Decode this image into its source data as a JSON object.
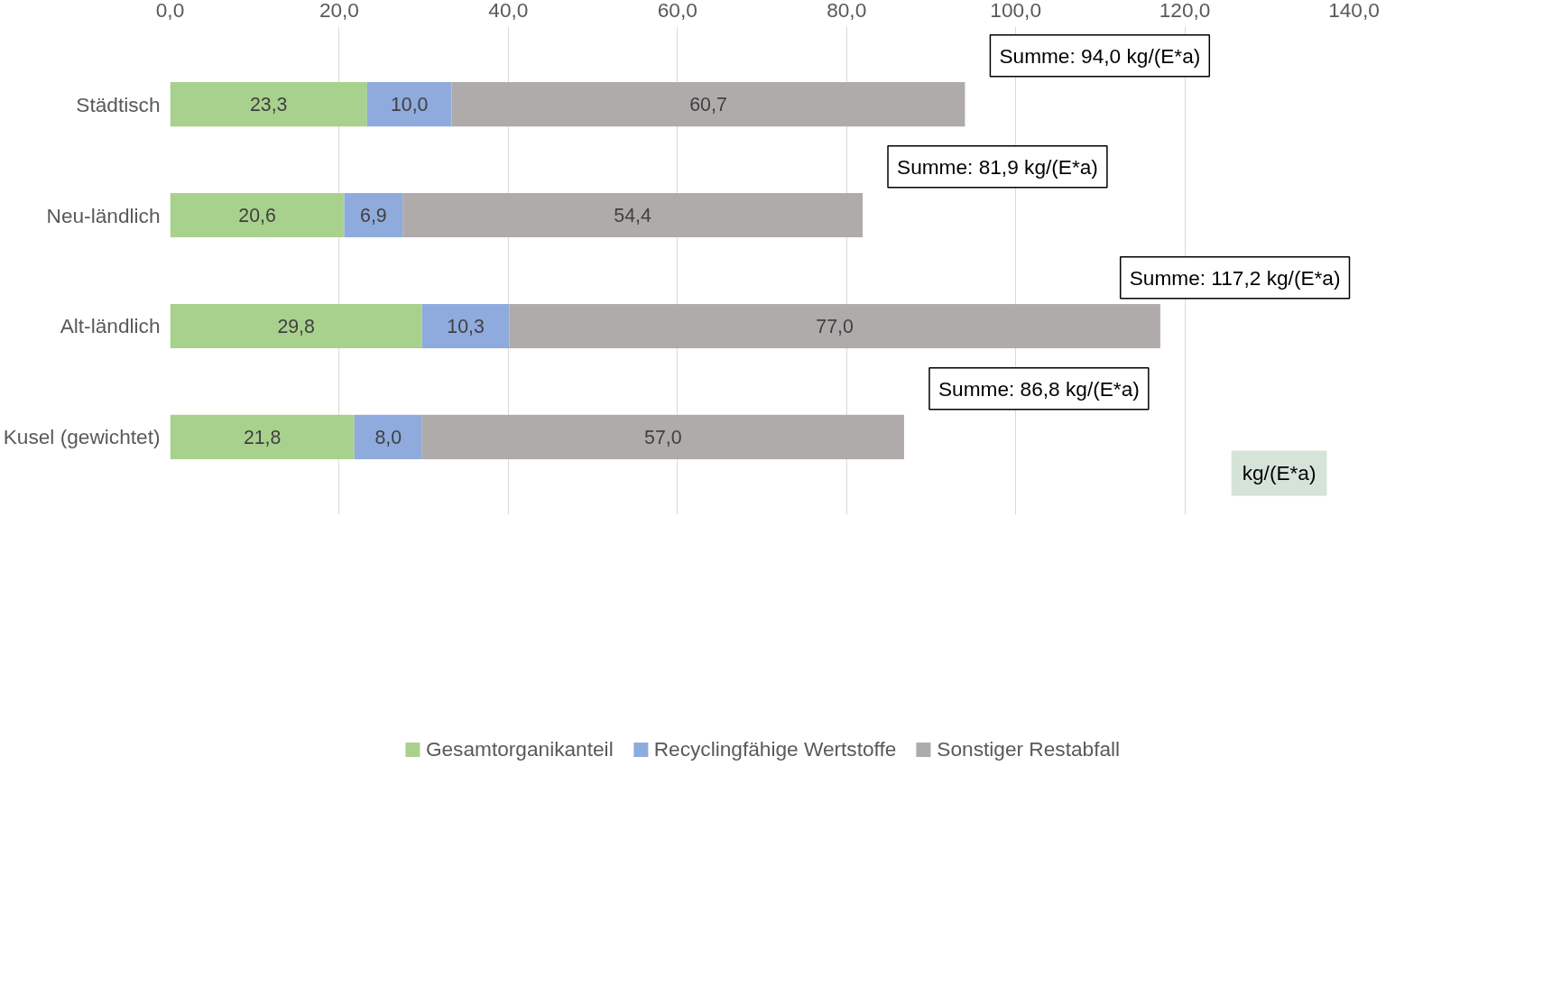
{
  "chart_data": {
    "type": "bar",
    "orientation": "horizontal",
    "stacked": true,
    "categories": [
      "Städtisch",
      "Neu-ländlich",
      "Alt-ländlich",
      "Kusel (gewichtet)"
    ],
    "series": [
      {
        "name": "Gesamtorganikanteil",
        "color": "#a9d18e",
        "values": [
          23.3,
          20.6,
          29.8,
          21.8
        ],
        "value_labels": [
          "23,3",
          "20,6",
          "29,8",
          "21,8"
        ]
      },
      {
        "name": "Recyclingfähige Wertstoffe",
        "color": "#8faadc",
        "values": [
          10.0,
          6.9,
          10.3,
          8.0
        ],
        "value_labels": [
          "10,0",
          "6,9",
          "10,3",
          "8,0"
        ]
      },
      {
        "name": "Sonstiger Restabfall",
        "color": "#afabab",
        "values": [
          60.7,
          54.4,
          77.0,
          57.0
        ],
        "value_labels": [
          "60,7",
          "54,4",
          "77,0",
          "57,0"
        ]
      }
    ],
    "totals": [
      "Summe: 94,0 kg/(E*a)",
      "Summe: 81,9 kg/(E*a)",
      "Summe: 117,2 kg/(E*a)",
      "Summe: 86,8 kg/(E*a)"
    ],
    "xlim": [
      0,
      140
    ],
    "xticks": [
      {
        "value": 0,
        "label": "0,0"
      },
      {
        "value": 20,
        "label": "20,0"
      },
      {
        "value": 40,
        "label": "40,0"
      },
      {
        "value": 60,
        "label": "60,0"
      },
      {
        "value": 80,
        "label": "80,0"
      },
      {
        "value": 100,
        "label": "100,0"
      },
      {
        "value": 120,
        "label": "120,0"
      },
      {
        "value": 140,
        "label": "140,0"
      }
    ],
    "grid": "x",
    "legend": "bottom",
    "annotations": [
      "kg/(E*a)"
    ]
  }
}
